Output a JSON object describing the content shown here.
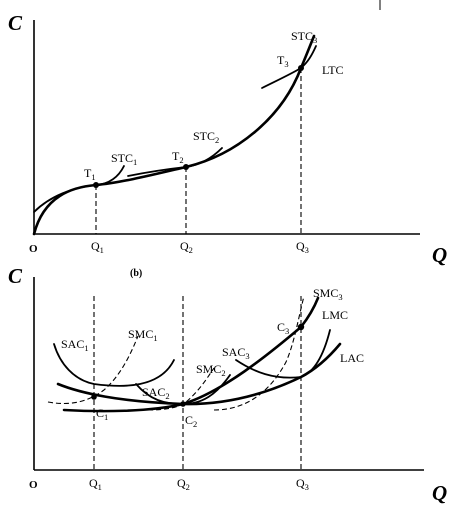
{
  "panel_a": {
    "y_axis": "C",
    "x_axis": "Q",
    "origin": "O",
    "ticks": [
      {
        "main": "Q",
        "sub": "1"
      },
      {
        "main": "Q",
        "sub": "2"
      },
      {
        "main": "Q",
        "sub": "3"
      }
    ],
    "curves": {
      "ltc": "LTC",
      "stc1": {
        "main": "STC",
        "sub": "1"
      },
      "stc2": {
        "main": "STC",
        "sub": "2"
      },
      "stc3": {
        "main": "STC",
        "sub": "3"
      }
    },
    "points": [
      {
        "main": "T",
        "sub": "1"
      },
      {
        "main": "T",
        "sub": "2"
      },
      {
        "main": "T",
        "sub": "3"
      }
    ]
  },
  "panel_b": {
    "tag": "(b)",
    "y_axis": "C",
    "x_axis": "Q",
    "origin": "O",
    "ticks": [
      {
        "main": "Q",
        "sub": "1"
      },
      {
        "main": "Q",
        "sub": "2"
      },
      {
        "main": "Q",
        "sub": "3"
      }
    ],
    "curves": {
      "lac": "LAC",
      "lmc": "LMC",
      "sac1": {
        "main": "SAC",
        "sub": "1"
      },
      "sac2": {
        "main": "SAC",
        "sub": "2"
      },
      "sac3": {
        "main": "SAC",
        "sub": "3"
      },
      "smc1": {
        "main": "SMC",
        "sub": "1"
      },
      "smc2": {
        "main": "SMC",
        "sub": "2"
      },
      "smc3": {
        "main": "SMC",
        "sub": "3"
      }
    },
    "points": [
      {
        "main": "C",
        "sub": "1"
      },
      {
        "main": "C",
        "sub": "2"
      },
      {
        "main": "C",
        "sub": "3"
      }
    ]
  }
}
